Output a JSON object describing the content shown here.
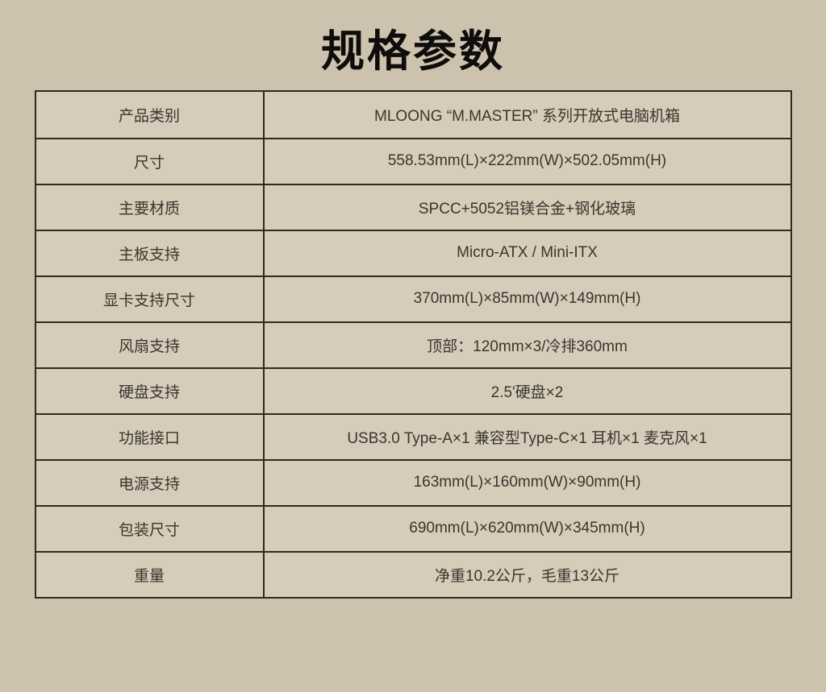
{
  "page": {
    "title": "规格参数",
    "colors": {
      "page_background": "#CDC2AE",
      "cell_background": "#D6CCBA",
      "border": "#2E2A22",
      "text": "#3A352E",
      "title_text": "#0E0D0B"
    }
  },
  "table": {
    "rows": [
      {
        "label": "产品类别",
        "value": "MLOONG “M.MASTER” 系列开放式电脑机箱"
      },
      {
        "label": "尺寸",
        "value": "558.53mm(L)×222mm(W)×502.05mm(H)"
      },
      {
        "label": "主要材质",
        "value": "SPCC+5052铝镁合金+钢化玻璃"
      },
      {
        "label": "主板支持",
        "value": "Micro-ATX / Mini-ITX"
      },
      {
        "label": "显卡支持尺寸",
        "value": "370mm(L)×85mm(W)×149mm(H)"
      },
      {
        "label": "风扇支持",
        "value": "顶部：120mm×3/冷排360mm"
      },
      {
        "label": "硬盘支持",
        "value": "2.5'硬盘×2"
      },
      {
        "label": "功能接口",
        "value": "USB3.0 Type-A×1 兼容型Type-C×1 耳机×1 麦克风×1"
      },
      {
        "label": "电源支持",
        "value": "163mm(L)×160mm(W)×90mm(H)"
      },
      {
        "label": "包装尺寸",
        "value": "690mm(L)×620mm(W)×345mm(H)"
      },
      {
        "label": "重量",
        "value": "净重10.2公斤，毛重13公斤"
      }
    ]
  }
}
